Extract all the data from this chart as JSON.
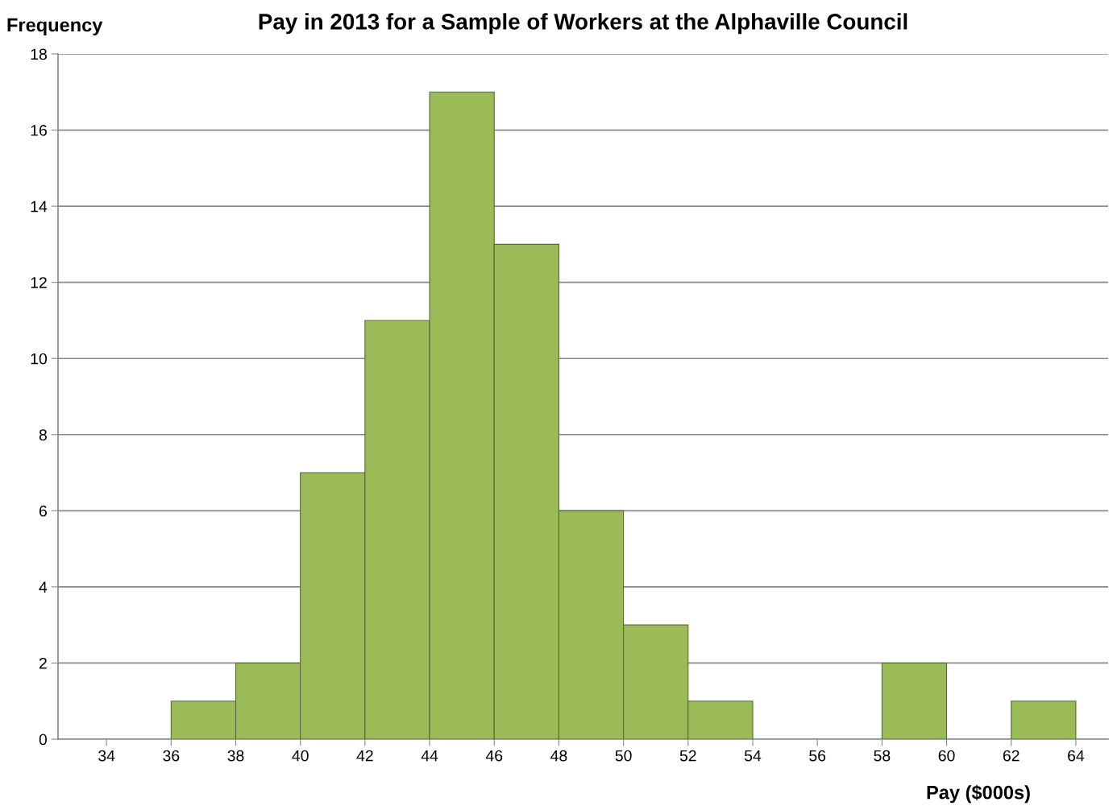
{
  "chart_data": {
    "type": "histogram",
    "title": "Pay in 2013 for a Sample of Workers at the Alphaville Council",
    "xlabel": "Pay ($000s)",
    "ylabel": "Frequency",
    "bins": [
      36,
      38,
      40,
      42,
      44,
      46,
      48,
      50,
      52,
      54,
      56,
      58,
      60,
      62,
      64
    ],
    "values": [
      1,
      2,
      7,
      11,
      17,
      13,
      6,
      3,
      1,
      0,
      0,
      2,
      0,
      1
    ],
    "color": "#9bbb59",
    "xlim": [
      32.5,
      65
    ],
    "xticks": [
      34,
      36,
      38,
      40,
      42,
      44,
      46,
      48,
      50,
      52,
      54,
      56,
      58,
      60,
      62,
      64
    ],
    "ylim": [
      0,
      18
    ],
    "yticks": [
      0,
      2,
      4,
      6,
      8,
      10,
      12,
      14,
      16,
      18
    ],
    "grid": "y",
    "legend": false
  }
}
